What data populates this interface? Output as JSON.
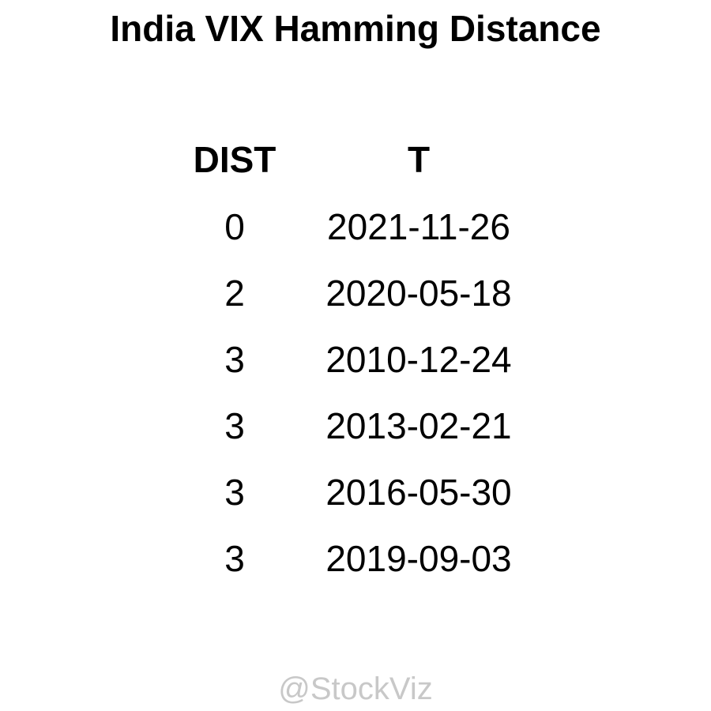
{
  "title": "India VIX Hamming Distance",
  "watermark": "@StockViz",
  "chart_data": {
    "type": "table",
    "title": "India VIX Hamming Distance",
    "columns": [
      "DIST",
      "T"
    ],
    "rows": [
      [
        "0",
        "2021-11-26"
      ],
      [
        "2",
        "2020-05-18"
      ],
      [
        "3",
        "2010-12-24"
      ],
      [
        "3",
        "2013-02-21"
      ],
      [
        "3",
        "2016-05-30"
      ],
      [
        "3",
        "2019-09-03"
      ]
    ]
  }
}
